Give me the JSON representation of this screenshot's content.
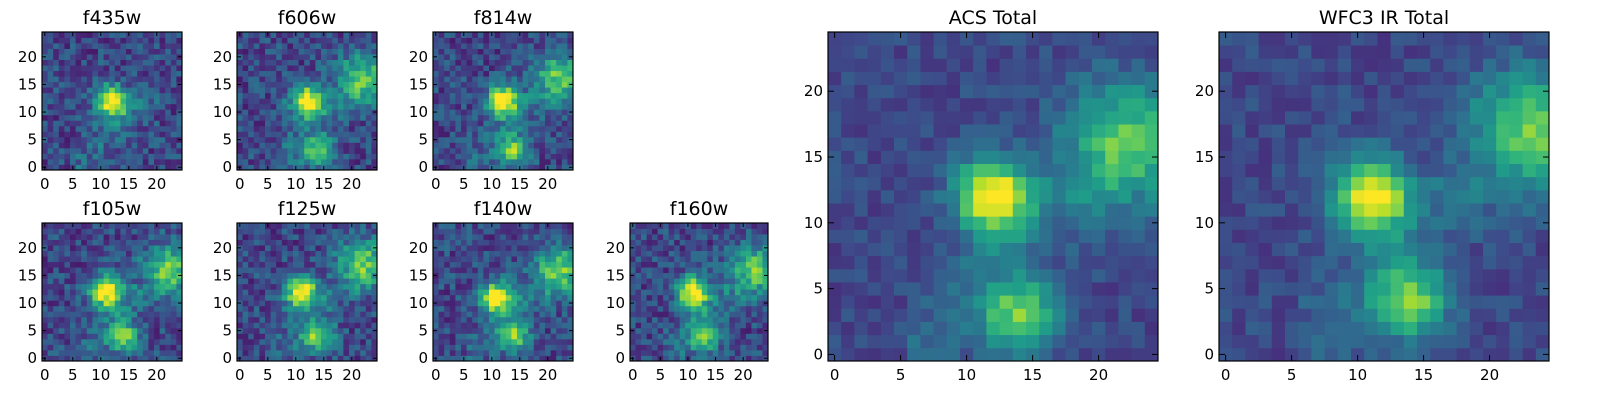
{
  "chart_data": [
    {
      "type": "heatmap",
      "title": "f435w",
      "xlim": [
        0,
        24
      ],
      "ylim": [
        0,
        24
      ],
      "xticks": [
        0,
        5,
        10,
        15,
        20
      ],
      "yticks": [
        0,
        5,
        10,
        15,
        20
      ],
      "colormap": "viridis",
      "peaks": [
        [
          12,
          12
        ]
      ]
    },
    {
      "type": "heatmap",
      "title": "f606w",
      "xlim": [
        0,
        24
      ],
      "ylim": [
        0,
        24
      ],
      "xticks": [
        0,
        5,
        10,
        15,
        20
      ],
      "yticks": [
        0,
        5,
        10,
        15,
        20
      ],
      "colormap": "viridis",
      "peaks": [
        [
          12,
          12
        ],
        [
          22,
          16
        ],
        [
          14,
          3
        ]
      ]
    },
    {
      "type": "heatmap",
      "title": "f814w",
      "xlim": [
        0,
        24
      ],
      "ylim": [
        0,
        24
      ],
      "xticks": [
        0,
        5,
        10,
        15,
        20
      ],
      "yticks": [
        0,
        5,
        10,
        15,
        20
      ],
      "colormap": "viridis",
      "peaks": [
        [
          12,
          12
        ],
        [
          22,
          16
        ],
        [
          14,
          3
        ]
      ]
    },
    {
      "type": "heatmap",
      "title": "f105w",
      "xlim": [
        0,
        24
      ],
      "ylim": [
        0,
        24
      ],
      "xticks": [
        0,
        5,
        10,
        15,
        20
      ],
      "yticks": [
        0,
        5,
        10,
        15,
        20
      ],
      "colormap": "viridis",
      "peaks": [
        [
          11,
          12
        ],
        [
          22,
          16
        ],
        [
          14,
          4
        ]
      ]
    },
    {
      "type": "heatmap",
      "title": "f125w",
      "xlim": [
        0,
        24
      ],
      "ylim": [
        0,
        24
      ],
      "xticks": [
        0,
        5,
        10,
        15,
        20
      ],
      "yticks": [
        0,
        5,
        10,
        15,
        20
      ],
      "colormap": "viridis",
      "peaks": [
        [
          11,
          12
        ],
        [
          22,
          17
        ],
        [
          14,
          4
        ]
      ]
    },
    {
      "type": "heatmap",
      "title": "f140w",
      "xlim": [
        0,
        24
      ],
      "ylim": [
        0,
        24
      ],
      "xticks": [
        0,
        5,
        10,
        15,
        20
      ],
      "yticks": [
        0,
        5,
        10,
        15,
        20
      ],
      "colormap": "viridis",
      "peaks": [
        [
          11,
          11
        ],
        [
          22,
          16
        ],
        [
          14,
          4
        ]
      ]
    },
    {
      "type": "heatmap",
      "title": "f160w",
      "xlim": [
        0,
        24
      ],
      "ylim": [
        0,
        24
      ],
      "xticks": [
        0,
        5,
        10,
        15,
        20
      ],
      "yticks": [
        0,
        5,
        10,
        15,
        20
      ],
      "colormap": "viridis",
      "peaks": [
        [
          11,
          12
        ],
        [
          22,
          16
        ],
        [
          13,
          4
        ]
      ]
    },
    {
      "type": "heatmap",
      "title": "ACS Total",
      "xlim": [
        0,
        24
      ],
      "ylim": [
        0,
        24
      ],
      "xticks": [
        0,
        5,
        10,
        15,
        20
      ],
      "yticks": [
        0,
        5,
        10,
        15,
        20
      ],
      "colormap": "viridis",
      "peaks": [
        [
          12,
          12
        ],
        [
          22,
          16
        ],
        [
          14,
          3
        ]
      ]
    },
    {
      "type": "heatmap",
      "title": "WFC3 IR Total",
      "xlim": [
        0,
        24
      ],
      "ylim": [
        0,
        24
      ],
      "xticks": [
        0,
        5,
        10,
        15,
        20
      ],
      "yticks": [
        0,
        5,
        10,
        15,
        20
      ],
      "colormap": "viridis",
      "peaks": [
        [
          11,
          12
        ],
        [
          23,
          17
        ],
        [
          14,
          4
        ]
      ]
    }
  ]
}
